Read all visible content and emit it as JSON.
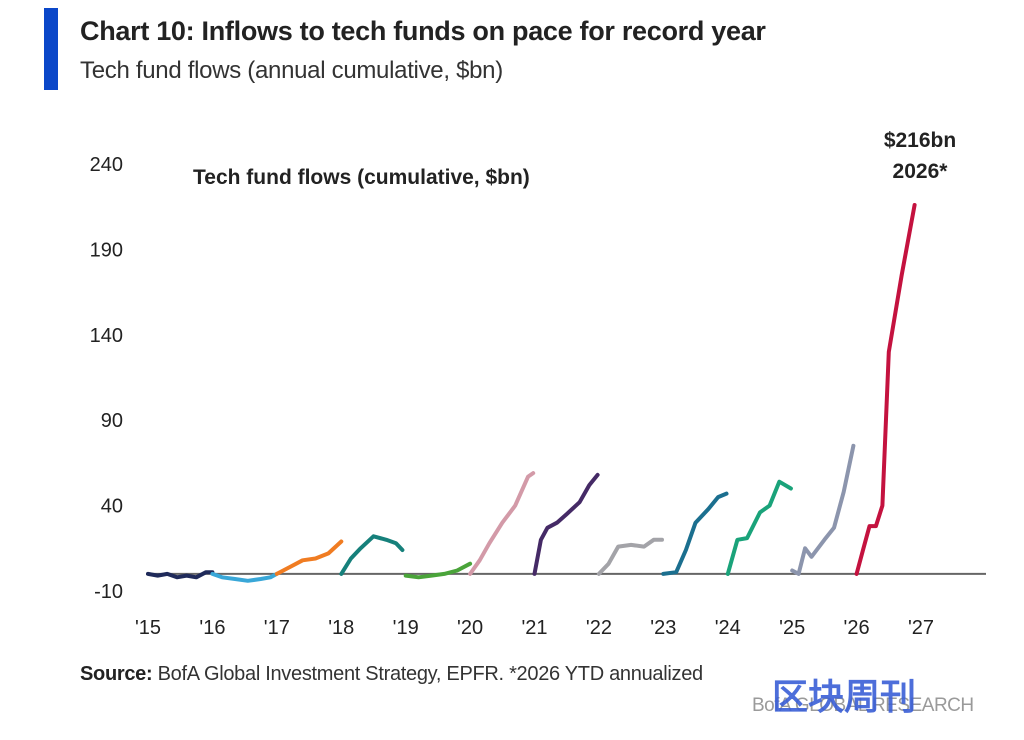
{
  "header": {
    "title": "Chart 10: Inflows to tech funds on pace for record year",
    "subtitle": "Tech fund flows (annual cumulative, $bn)"
  },
  "footer": {
    "source_label": "Source:",
    "source_text": "BofA Global Investment Strategy, EPFR. *2026 YTD annualized",
    "watermark": "BofA GLOBAL RESEARCH",
    "stamp": "区块周刊"
  },
  "colors": {
    "accent": "#0b47c9",
    "zero_line": "#666666"
  },
  "chart_data": {
    "type": "line",
    "title": "Tech fund flows (cumulative, $bn)",
    "ylim": [
      -10,
      240
    ],
    "yticks": [
      "240",
      "190",
      "140",
      "90",
      "40",
      "-10"
    ],
    "yticks_values": [
      240,
      190,
      140,
      90,
      40,
      -10
    ],
    "xticks": [
      "'15",
      "'16",
      "'17",
      "'18",
      "'19",
      "'20",
      "'21",
      "'22",
      "'23",
      "'24",
      "'25",
      "'26",
      "'27"
    ],
    "xlim": [
      2015,
      2027
    ],
    "grid": false,
    "annotation": {
      "text_1": "$216bn",
      "text_2": "2026*",
      "x": 2026.9,
      "y": 216
    },
    "series": [
      {
        "year": "2015",
        "color": "#1f2a5a",
        "points": [
          [
            2015.0,
            0
          ],
          [
            2015.15,
            -1
          ],
          [
            2015.3,
            0
          ],
          [
            2015.45,
            -2
          ],
          [
            2015.6,
            -1
          ],
          [
            2015.75,
            -2
          ],
          [
            2015.9,
            1
          ],
          [
            2016.0,
            1
          ]
        ]
      },
      {
        "year": "2016",
        "color": "#39a7d8",
        "points": [
          [
            2016.0,
            0
          ],
          [
            2016.15,
            -2
          ],
          [
            2016.35,
            -3
          ],
          [
            2016.55,
            -4
          ],
          [
            2016.75,
            -3
          ],
          [
            2016.9,
            -2
          ],
          [
            2017.0,
            0
          ]
        ]
      },
      {
        "year": "2017",
        "color": "#f07c22",
        "points": [
          [
            2017.0,
            0
          ],
          [
            2017.2,
            4
          ],
          [
            2017.4,
            8
          ],
          [
            2017.6,
            9
          ],
          [
            2017.8,
            12
          ],
          [
            2018.0,
            19
          ]
        ]
      },
      {
        "year": "2018",
        "color": "#16807b",
        "points": [
          [
            2018.0,
            0
          ],
          [
            2018.15,
            9
          ],
          [
            2018.3,
            15
          ],
          [
            2018.5,
            22
          ],
          [
            2018.7,
            20
          ],
          [
            2018.85,
            18
          ],
          [
            2018.95,
            14
          ]
        ]
      },
      {
        "year": "2019",
        "color": "#4aa43a",
        "points": [
          [
            2019.0,
            -1
          ],
          [
            2019.2,
            -2
          ],
          [
            2019.4,
            -1
          ],
          [
            2019.6,
            0
          ],
          [
            2019.8,
            2
          ],
          [
            2020.0,
            6
          ]
        ]
      },
      {
        "year": "2020",
        "color": "#d39aa8",
        "points": [
          [
            2020.0,
            0
          ],
          [
            2020.15,
            8
          ],
          [
            2020.3,
            18
          ],
          [
            2020.5,
            30
          ],
          [
            2020.7,
            40
          ],
          [
            2020.9,
            57
          ],
          [
            2020.98,
            59
          ]
        ]
      },
      {
        "year": "2021",
        "color": "#452a66",
        "points": [
          [
            2021.0,
            0
          ],
          [
            2021.1,
            20
          ],
          [
            2021.2,
            27
          ],
          [
            2021.35,
            30
          ],
          [
            2021.5,
            35
          ],
          [
            2021.7,
            42
          ],
          [
            2021.85,
            52
          ],
          [
            2021.98,
            58
          ]
        ]
      },
      {
        "year": "2022",
        "color": "#a3a3a8",
        "points": [
          [
            2022.0,
            0
          ],
          [
            2022.15,
            6
          ],
          [
            2022.3,
            16
          ],
          [
            2022.5,
            17
          ],
          [
            2022.7,
            16
          ],
          [
            2022.85,
            20
          ],
          [
            2022.98,
            20
          ]
        ]
      },
      {
        "year": "2023",
        "color": "#1b6f8f",
        "points": [
          [
            2023.0,
            0
          ],
          [
            2023.2,
            1
          ],
          [
            2023.35,
            14
          ],
          [
            2023.5,
            30
          ],
          [
            2023.7,
            38
          ],
          [
            2023.85,
            45
          ],
          [
            2023.98,
            47
          ]
        ]
      },
      {
        "year": "2024",
        "color": "#1aa37a",
        "points": [
          [
            2024.0,
            0
          ],
          [
            2024.15,
            20
          ],
          [
            2024.3,
            21
          ],
          [
            2024.5,
            36
          ],
          [
            2024.65,
            40
          ],
          [
            2024.8,
            54
          ],
          [
            2024.98,
            50
          ]
        ]
      },
      {
        "year": "2025",
        "color": "#8c95ad",
        "points": [
          [
            2025.0,
            2
          ],
          [
            2025.1,
            0
          ],
          [
            2025.2,
            15
          ],
          [
            2025.3,
            10
          ],
          [
            2025.5,
            20
          ],
          [
            2025.65,
            27
          ],
          [
            2025.8,
            48
          ],
          [
            2025.95,
            75
          ]
        ]
      },
      {
        "year": "2026",
        "color": "#c4123f",
        "points": [
          [
            2026.0,
            0
          ],
          [
            2026.1,
            14
          ],
          [
            2026.2,
            28
          ],
          [
            2026.3,
            28
          ],
          [
            2026.4,
            40
          ],
          [
            2026.5,
            130
          ],
          [
            2026.7,
            175
          ],
          [
            2026.9,
            216
          ]
        ]
      }
    ]
  }
}
